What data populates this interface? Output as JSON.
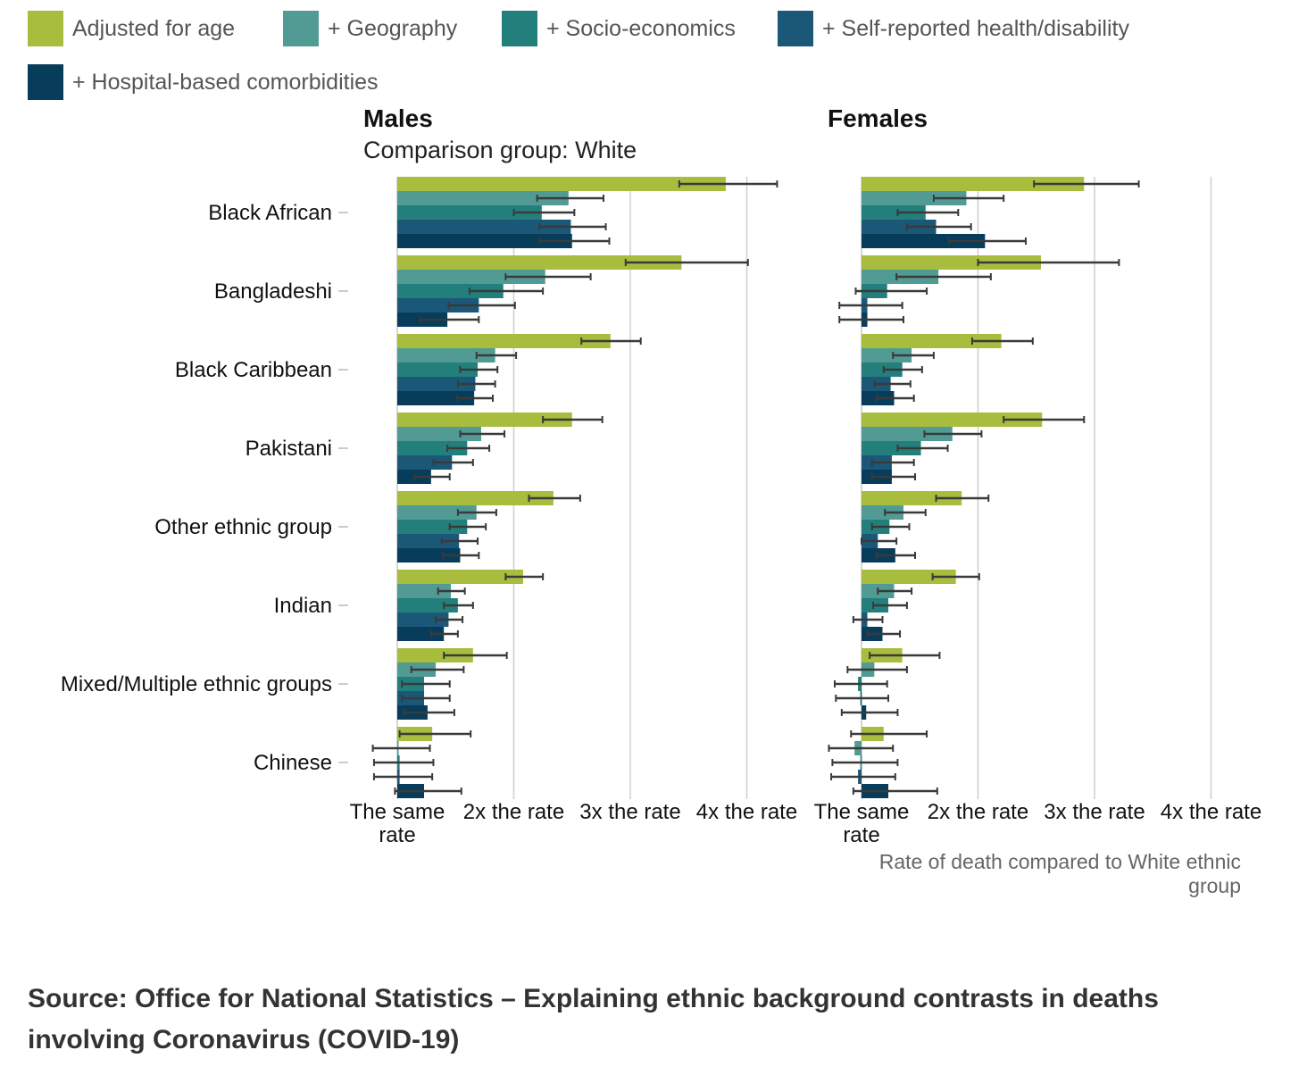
{
  "legend": [
    {
      "label": "Adjusted for age",
      "color": "#a8bc3d"
    },
    {
      "label": "+ Geography",
      "color": "#529b94"
    },
    {
      "label": "+ Socio-economics",
      "color": "#237f7c"
    },
    {
      "label": "+ Self-reported health/disability",
      "color": "#1b5878"
    },
    {
      "label": "+ Hospital-based comorbidities",
      "color": "#073d5a"
    }
  ],
  "source": "Source: Office for National Statistics – Explaining ethnic background contrasts in deaths involving Coronavirus (COVID-19)",
  "chart_data": {
    "type": "bar",
    "orientation": "horizontal",
    "comparison_label": "Comparison group: White",
    "xlabel": "Rate of death compared to White ethnic group",
    "xlim": [
      1,
      4
    ],
    "xticks": [
      1,
      2,
      3,
      4
    ],
    "xtick_labels": [
      "The same rate",
      "2x the rate",
      "3x the rate",
      "4x the rate"
    ],
    "grid": true,
    "legend_position": "top",
    "categories": [
      "Black African",
      "Bangladeshi",
      "Black Caribbean",
      "Pakistani",
      "Other ethnic group",
      "Indian",
      "Mixed/Multiple ethnic groups",
      "Chinese"
    ],
    "series_names": [
      "Adjusted for age",
      "+ Geography",
      "+ Socio-economics",
      "+ Self-reported health/disability",
      "+ Hospital-based comorbidities"
    ],
    "panels": [
      {
        "title": "Males",
        "values": [
          [
            [
              3.82,
              3.42,
              4.26
            ],
            [
              2.47,
              2.2,
              2.77
            ],
            [
              2.24,
              2.0,
              2.52
            ],
            [
              2.49,
              2.22,
              2.79
            ],
            [
              2.5,
              2.22,
              2.82
            ]
          ],
          [
            [
              3.44,
              2.96,
              4.01
            ],
            [
              2.27,
              1.93,
              2.66
            ],
            [
              1.91,
              1.62,
              2.25
            ],
            [
              1.7,
              1.44,
              2.01
            ],
            [
              1.43,
              1.2,
              1.7
            ]
          ],
          [
            [
              2.83,
              2.58,
              3.09
            ],
            [
              1.84,
              1.68,
              2.02
            ],
            [
              1.69,
              1.54,
              1.86
            ],
            [
              1.67,
              1.52,
              1.84
            ],
            [
              1.66,
              1.51,
              1.82
            ]
          ],
          [
            [
              2.5,
              2.25,
              2.76
            ],
            [
              1.72,
              1.54,
              1.92
            ],
            [
              1.6,
              1.43,
              1.79
            ],
            [
              1.47,
              1.31,
              1.65
            ],
            [
              1.29,
              1.15,
              1.45
            ]
          ],
          [
            [
              2.34,
              2.13,
              2.57
            ],
            [
              1.68,
              1.52,
              1.85
            ],
            [
              1.6,
              1.45,
              1.76
            ],
            [
              1.53,
              1.38,
              1.69
            ],
            [
              1.54,
              1.39,
              1.7
            ]
          ],
          [
            [
              2.08,
              1.93,
              2.25
            ],
            [
              1.46,
              1.35,
              1.58
            ],
            [
              1.52,
              1.4,
              1.65
            ],
            [
              1.44,
              1.33,
              1.56
            ],
            [
              1.4,
              1.29,
              1.52
            ]
          ],
          [
            [
              1.65,
              1.4,
              1.94
            ],
            [
              1.33,
              1.12,
              1.57
            ],
            [
              1.23,
              1.04,
              1.45
            ],
            [
              1.23,
              1.04,
              1.45
            ],
            [
              1.26,
              1.06,
              1.49
            ]
          ],
          [
            [
              1.3,
              1.02,
              1.63
            ],
            [
              1.01,
              0.79,
              1.28
            ],
            [
              1.02,
              0.8,
              1.31
            ],
            [
              1.02,
              0.8,
              1.3
            ],
            [
              1.23,
              0.98,
              1.55
            ]
          ]
        ]
      },
      {
        "title": "Females",
        "values": [
          [
            [
              2.91,
              2.48,
              3.38
            ],
            [
              1.9,
              1.62,
              2.22
            ],
            [
              1.55,
              1.31,
              1.83
            ],
            [
              1.64,
              1.39,
              1.94
            ],
            [
              2.06,
              1.75,
              2.41
            ]
          ],
          [
            [
              2.54,
              2.0,
              3.21
            ],
            [
              1.66,
              1.3,
              2.11
            ],
            [
              1.22,
              0.95,
              1.56
            ],
            [
              1.05,
              0.81,
              1.35
            ],
            [
              1.05,
              0.81,
              1.36
            ]
          ],
          [
            [
              2.2,
              1.95,
              2.47
            ],
            [
              1.43,
              1.27,
              1.62
            ],
            [
              1.35,
              1.19,
              1.52
            ],
            [
              1.25,
              1.11,
              1.42
            ],
            [
              1.28,
              1.13,
              1.45
            ]
          ],
          [
            [
              2.55,
              2.22,
              2.91
            ],
            [
              1.78,
              1.54,
              2.03
            ],
            [
              1.51,
              1.31,
              1.74
            ],
            [
              1.26,
              1.09,
              1.45
            ],
            [
              1.26,
              1.09,
              1.46
            ]
          ],
          [
            [
              1.86,
              1.64,
              2.09
            ],
            [
              1.36,
              1.2,
              1.55
            ],
            [
              1.24,
              1.09,
              1.41
            ],
            [
              1.14,
              1.0,
              1.3
            ],
            [
              1.29,
              1.13,
              1.46
            ]
          ],
          [
            [
              1.81,
              1.61,
              2.01
            ],
            [
              1.28,
              1.14,
              1.43
            ],
            [
              1.23,
              1.1,
              1.39
            ],
            [
              1.05,
              0.93,
              1.18
            ],
            [
              1.18,
              1.05,
              1.33
            ]
          ],
          [
            [
              1.35,
              1.07,
              1.67
            ],
            [
              1.11,
              0.88,
              1.39
            ],
            [
              0.97,
              0.77,
              1.22
            ],
            [
              0.99,
              0.78,
              1.23
            ],
            [
              1.04,
              0.83,
              1.31
            ]
          ],
          [
            [
              1.19,
              0.91,
              1.56
            ],
            [
              0.94,
              0.72,
              1.27
            ],
            [
              0.99,
              0.75,
              1.31
            ],
            [
              0.97,
              0.74,
              1.29
            ],
            [
              1.23,
              0.93,
              1.65
            ]
          ]
        ]
      }
    ]
  }
}
